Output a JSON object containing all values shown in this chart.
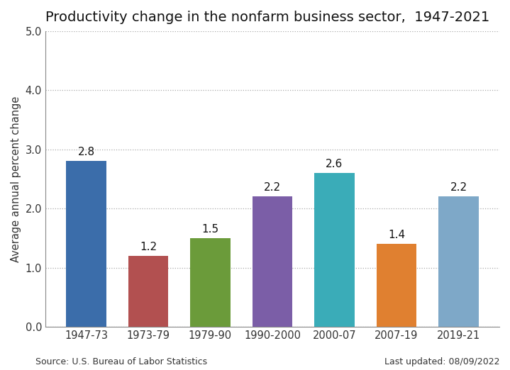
{
  "title": "Productivity change in the nonfarm business sector,  1947-2021",
  "ylabel": "Average annual percent change",
  "categories": [
    "1947-73",
    "1973-79",
    "1979-90",
    "1990-2000",
    "2000-07",
    "2007-19",
    "2019-21"
  ],
  "values": [
    2.8,
    1.2,
    1.5,
    2.2,
    2.6,
    1.4,
    2.2
  ],
  "bar_colors": [
    "#3B6DAA",
    "#B25050",
    "#6B9B3A",
    "#7B5EA7",
    "#3AACB8",
    "#E08030",
    "#7EA8C8"
  ],
  "ylim": [
    0,
    5.0
  ],
  "yticks": [
    0.0,
    1.0,
    2.0,
    3.0,
    4.0,
    5.0
  ],
  "source_text": "Source: U.S. Bureau of Labor Statistics",
  "updated_text": "Last updated: 08/09/2022",
  "title_fontsize": 14,
  "label_fontsize": 10.5,
  "tick_fontsize": 10.5,
  "annotation_fontsize": 11,
  "background_color": "#FFFFFF",
  "grid_color": "#AAAAAA"
}
